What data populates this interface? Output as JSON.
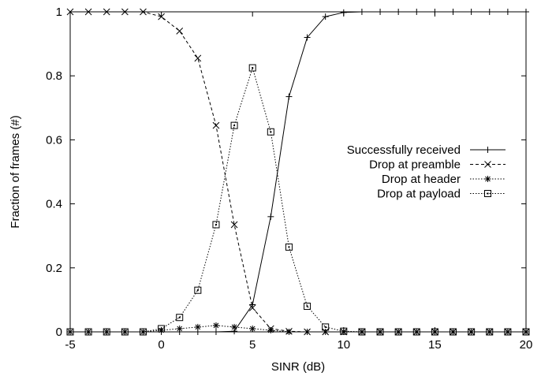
{
  "chart_data": {
    "type": "line",
    "title": "",
    "xlabel": "SINR (dB)",
    "ylabel": "Fraction of frames (#)",
    "xlim": [
      -5,
      20
    ],
    "ylim": [
      0,
      1
    ],
    "xticks": [
      -5,
      0,
      5,
      10,
      15,
      20
    ],
    "xtick_labels": [
      "-5",
      "0",
      "5",
      "10",
      "15",
      "20"
    ],
    "yticks": [
      0,
      0.2,
      0.4,
      0.6,
      0.8,
      1
    ],
    "ytick_labels": [
      "0",
      "0.2",
      "0.4",
      "0.6",
      "0.8",
      "1"
    ],
    "grid": false,
    "legend_position": "right",
    "x": [
      -5,
      -4,
      -3,
      -2,
      -1,
      0,
      1,
      2,
      3,
      4,
      5,
      6,
      7,
      8,
      9,
      10,
      11,
      12,
      13,
      14,
      15,
      16,
      17,
      18,
      19,
      20
    ],
    "series": [
      {
        "name": "Successfully received",
        "line_style": "solid",
        "marker": "plus",
        "values": [
          0,
          0,
          0,
          0,
          0,
          0,
          0,
          0,
          0,
          0.002,
          0.085,
          0.36,
          0.735,
          0.92,
          0.985,
          0.998,
          1,
          1,
          1,
          1,
          1,
          1,
          1,
          1,
          1,
          1
        ]
      },
      {
        "name": "Drop at preamble",
        "line_style": "dashed",
        "marker": "cross",
        "values": [
          1,
          1,
          1,
          1,
          1,
          0.985,
          0.94,
          0.855,
          0.645,
          0.335,
          0.075,
          0.01,
          0.002,
          0,
          0,
          0,
          0,
          0,
          0,
          0,
          0,
          0,
          0,
          0,
          0,
          0
        ]
      },
      {
        "name": "Drop at header",
        "line_style": "dotted",
        "marker": "star",
        "values": [
          0,
          0,
          0,
          0,
          0,
          0.005,
          0.01,
          0.015,
          0.02,
          0.015,
          0.01,
          0.005,
          0,
          0,
          0,
          0,
          0,
          0,
          0,
          0,
          0,
          0,
          0,
          0,
          0,
          0
        ]
      },
      {
        "name": "Drop at payload",
        "line_style": "dotted",
        "marker": "square",
        "values": [
          0,
          0,
          0,
          0,
          0,
          0.01,
          0.045,
          0.13,
          0.335,
          0.645,
          0.825,
          0.625,
          0.265,
          0.08,
          0.015,
          0.002,
          0,
          0,
          0,
          0,
          0,
          0,
          0,
          0,
          0,
          0
        ]
      }
    ]
  }
}
